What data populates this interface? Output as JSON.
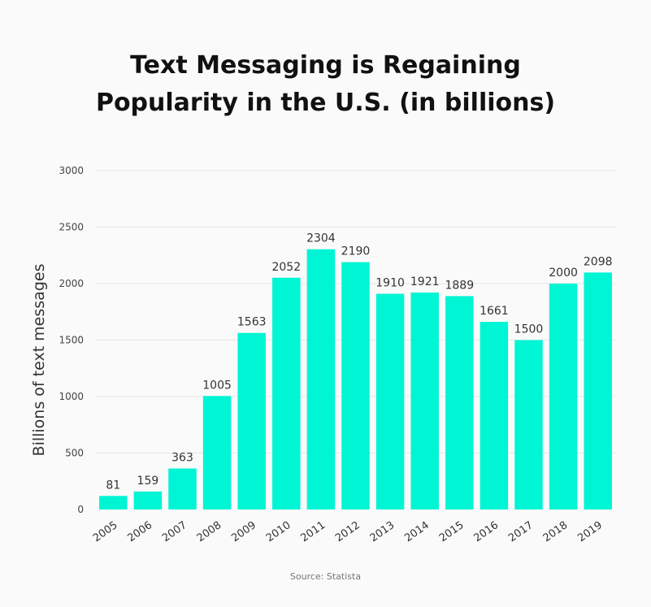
{
  "chart_data": {
    "type": "bar",
    "title": "Text Messaging is Regaining Popularity in the U.S. (in billions)",
    "xlabel": "",
    "ylabel": "Billions of text messages",
    "categories": [
      "2005",
      "2006",
      "2007",
      "2008",
      "2009",
      "2010",
      "2011",
      "2012",
      "2013",
      "2014",
      "2015",
      "2016",
      "2017",
      "2018",
      "2019"
    ],
    "values": [
      81,
      159,
      363,
      1005,
      1563,
      2052,
      2304,
      2190,
      1910,
      1921,
      1889,
      1661,
      1500,
      2000,
      2098
    ],
    "data_labels": [
      "81",
      "159",
      "363",
      "1005",
      "1563",
      "2052",
      "2304",
      "2190",
      "1910",
      "1921",
      "1889",
      "1661",
      "1500",
      "2000",
      "2098"
    ],
    "ylim": [
      0,
      3000
    ],
    "yticks": [
      0,
      500,
      1000,
      1500,
      2000,
      2500,
      3000
    ],
    "grid": true,
    "bar_color": "#00f5d4"
  },
  "source_text": "Source: Statista"
}
